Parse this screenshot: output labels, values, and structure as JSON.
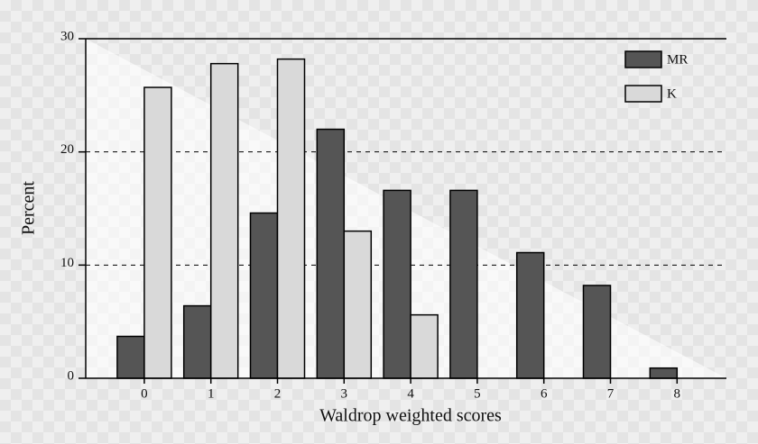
{
  "chart_data": {
    "type": "bar",
    "x_label": "Waldrop weighted scores",
    "y_label": "Percent",
    "categories": [
      "0",
      "1",
      "2",
      "3",
      "4",
      "5",
      "6",
      "7",
      "8"
    ],
    "series": [
      {
        "name": "MR",
        "color": "#555555",
        "values": [
          3.7,
          6.4,
          14.6,
          22.0,
          16.6,
          16.6,
          11.1,
          8.2,
          0.9
        ]
      },
      {
        "name": "K",
        "color": "#d9d9d9",
        "values": [
          25.7,
          27.8,
          28.2,
          13.0,
          5.6,
          null,
          null,
          null,
          null
        ]
      }
    ],
    "ylim": [
      0,
      30
    ],
    "yticks": [
      0,
      10,
      20,
      30
    ],
    "grid": true,
    "legend": "top-right"
  }
}
